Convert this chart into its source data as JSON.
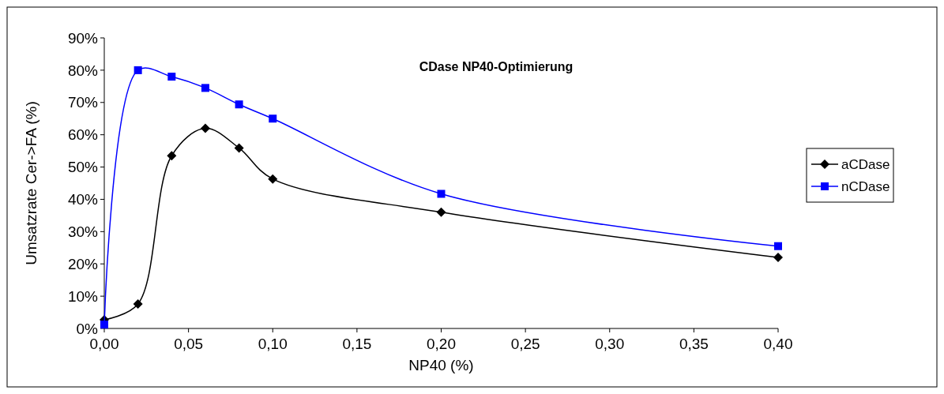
{
  "chart_data": {
    "type": "line",
    "title": "CDase NP40-Optimierung",
    "xlabel": "NP40 (%)",
    "ylabel": "Umsatzrate Cer->FA (%)",
    "x": [
      0,
      0.02,
      0.04,
      0.06,
      0.08,
      0.1,
      0.2,
      0.4
    ],
    "series": [
      {
        "name": "aCDase",
        "color": "#000000",
        "marker": "diamond",
        "values": [
          2.7,
          7.6,
          53.5,
          62,
          55.9,
          46.3,
          36,
          22
        ]
      },
      {
        "name": "nCDase",
        "color": "#0000ff",
        "marker": "square",
        "values": [
          1.2,
          80,
          78,
          74.5,
          69.4,
          65,
          41.7,
          25.5
        ]
      }
    ],
    "xlim": [
      0,
      0.4
    ],
    "xticks": [
      {
        "value": 0,
        "label": "0,00"
      },
      {
        "value": 0.05,
        "label": "0,05"
      },
      {
        "value": 0.1,
        "label": "0,10"
      },
      {
        "value": 0.15,
        "label": "0,15"
      },
      {
        "value": 0.2,
        "label": "0,20"
      },
      {
        "value": 0.25,
        "label": "0,25"
      },
      {
        "value": 0.3,
        "label": "0,30"
      },
      {
        "value": 0.35,
        "label": "0,35"
      },
      {
        "value": 0.4,
        "label": "0,40"
      }
    ],
    "ylim": [
      0,
      90
    ],
    "yticks": [
      {
        "value": 0,
        "label": "0%"
      },
      {
        "value": 10,
        "label": "10%"
      },
      {
        "value": 20,
        "label": "20%"
      },
      {
        "value": 30,
        "label": "30%"
      },
      {
        "value": 40,
        "label": "40%"
      },
      {
        "value": 50,
        "label": "50%"
      },
      {
        "value": 60,
        "label": "60%"
      },
      {
        "value": 70,
        "label": "70%"
      },
      {
        "value": 80,
        "label": "80%"
      },
      {
        "value": 90,
        "label": "90%"
      }
    ],
    "grid": false,
    "legend": "right",
    "line_style": "solid"
  }
}
